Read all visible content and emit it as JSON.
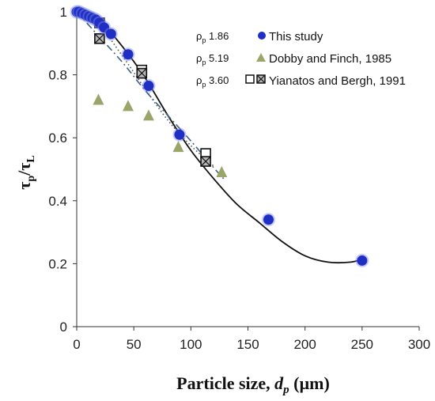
{
  "chart_data": {
    "type": "scatter",
    "xlabel": {
      "main": "Particle size, ",
      "var": "d",
      "sub": "p",
      "unit": " (µm)"
    },
    "ylabel": {
      "num": "τ",
      "num_sub": "p",
      "den": "τ",
      "den_sub": "L"
    },
    "xlim": [
      0,
      300
    ],
    "ylim": [
      0,
      1
    ],
    "xticks": [
      0,
      50,
      100,
      150,
      200,
      250,
      300
    ],
    "yticks": [
      0,
      0.2,
      0.4,
      0.6,
      0.8,
      1
    ],
    "grid": false,
    "legend_position": "top-right",
    "series": [
      {
        "name": "This study",
        "rho_label": "ρ",
        "rho_sub": "p",
        "rho_value": " 1.86",
        "marker": "circle",
        "color": "#1f2fc4",
        "x": [
          0,
          2,
          5,
          8,
          11,
          14,
          17,
          20,
          24,
          30,
          45,
          63,
          90,
          168,
          250
        ],
        "y": [
          1.0,
          1.0,
          0.995,
          0.99,
          0.985,
          0.98,
          0.975,
          0.965,
          0.95,
          0.93,
          0.865,
          0.765,
          0.61,
          0.34,
          0.21
        ]
      },
      {
        "name": "Dobby and Finch, 1985",
        "rho_label": "ρ",
        "rho_sub": "p",
        "rho_value": " 5.19",
        "marker": "triangle",
        "color": "#9aa56a",
        "x": [
          19,
          45,
          63,
          89,
          127
        ],
        "y": [
          0.72,
          0.7,
          0.67,
          0.57,
          0.49
        ]
      },
      {
        "name": "Yianatos and Bergh, 1991",
        "rho_label": "ρ",
        "rho_sub": "p",
        "rho_value": " 3.60",
        "marker": "square",
        "color": "#111111",
        "open_x": [
          20,
          57,
          113
        ],
        "open_y": [
          0.965,
          0.815,
          0.55
        ],
        "crossed_x": [
          20,
          57,
          113
        ],
        "crossed_y": [
          0.915,
          0.805,
          0.525
        ]
      }
    ],
    "fit_lines": [
      {
        "style": "solid",
        "color": "#111111",
        "x": [
          0,
          20,
          40,
          60,
          80,
          100,
          120,
          140,
          160,
          180,
          200,
          220,
          240,
          250
        ],
        "y": [
          1.0,
          0.97,
          0.89,
          0.79,
          0.67,
          0.56,
          0.47,
          0.39,
          0.33,
          0.27,
          0.225,
          0.205,
          0.205,
          0.215
        ]
      },
      {
        "style": "dotted",
        "color": "#555555",
        "x": [
          0,
          20,
          40,
          60,
          80,
          100,
          120
        ],
        "y": [
          1.0,
          0.955,
          0.86,
          0.755,
          0.655,
          0.575,
          0.51
        ]
      },
      {
        "style": "dashdot",
        "color": "#3d5f88",
        "x": [
          0,
          20,
          40,
          60,
          80,
          100,
          120,
          130
        ],
        "y": [
          1.0,
          0.92,
          0.84,
          0.75,
          0.67,
          0.59,
          0.505,
          0.465
        ]
      }
    ]
  }
}
